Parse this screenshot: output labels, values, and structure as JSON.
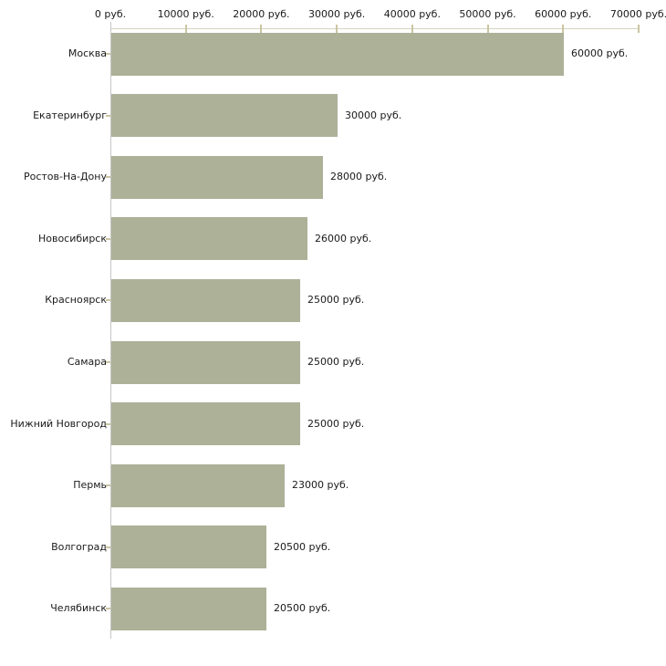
{
  "chart_data": {
    "type": "bar",
    "orientation": "horizontal",
    "title": "",
    "categories": [
      "Москва",
      "Екатеринбург",
      "Ростов-На-Дону",
      "Новосибирск",
      "Красноярск",
      "Самара",
      "Нижний Новгород",
      "Пермь",
      "Волгоград",
      "Челябинск"
    ],
    "values": [
      60000,
      30000,
      28000,
      26000,
      25000,
      25000,
      25000,
      23000,
      20500,
      20500
    ],
    "value_labels": [
      "60000 руб.",
      "30000 руб.",
      "28000 руб.",
      "26000 руб.",
      "25000 руб.",
      "25000 руб.",
      "25000 руб.",
      "23000 руб.",
      "20500 руб.",
      "20500 руб."
    ],
    "x_tick_values": [
      0,
      10000,
      20000,
      30000,
      40000,
      50000,
      60000,
      70000
    ],
    "x_tick_labels": [
      "0 руб.",
      "10000 руб.",
      "20000 руб.",
      "30000 руб.",
      "40000 руб.",
      "50000 руб.",
      "60000 руб.",
      "70000 руб."
    ],
    "xlim": [
      0,
      70000
    ],
    "xlabel": "",
    "ylabel": "",
    "grid": "off",
    "legend": "none",
    "unit_suffix": " руб.",
    "colors": {
      "bar": "#acb198",
      "x_axis_line": "#d6d3bd",
      "x_tick": "#c9c5a3",
      "y_axis_line": "#c6c6c6",
      "category_tick": "#c9c5a3",
      "text": "#1a1a1a",
      "background": "#ffffff"
    }
  }
}
